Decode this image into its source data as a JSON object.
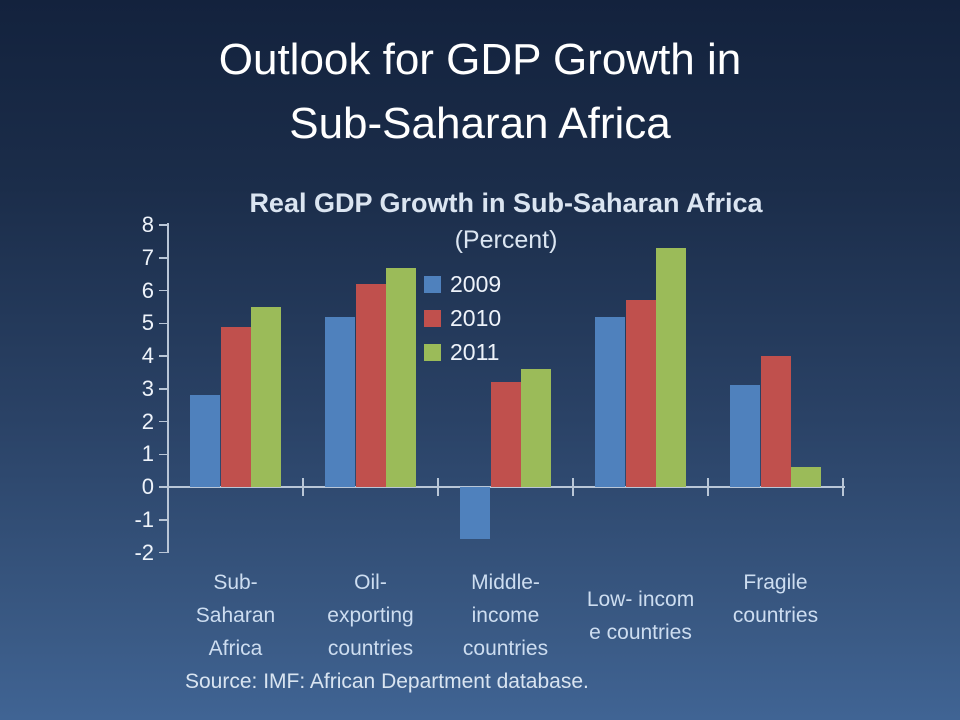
{
  "slide": {
    "title_line1": "Outlook for GDP Growth in",
    "title_line2": "Sub-Saharan Africa"
  },
  "chart_data": {
    "type": "bar",
    "title": "Real GDP Growth in Sub-Saharan Africa",
    "subtitle": "(Percent)",
    "categories": [
      "Sub-Saharan Africa",
      "Oil-exporting countries",
      "Middle-income countries",
      "Low-income countries",
      "Fragile countries"
    ],
    "category_label_lines": [
      [
        "Sub-",
        "Saharan",
        "Africa"
      ],
      [
        "Oil-",
        "exporting",
        "countries"
      ],
      [
        "Middle-",
        "income",
        "countries"
      ],
      [
        "Low- incom",
        "e countries"
      ],
      [
        "Fragile",
        "countries"
      ]
    ],
    "series": [
      {
        "name": "2009",
        "color": "#4F81BD",
        "values": [
          2.8,
          5.2,
          -1.6,
          5.2,
          3.1
        ]
      },
      {
        "name": "2010",
        "color": "#C0504D",
        "values": [
          4.9,
          6.2,
          3.2,
          5.7,
          4.0
        ]
      },
      {
        "name": "2011",
        "color": "#9BBB59",
        "values": [
          5.5,
          6.7,
          3.6,
          7.3,
          0.6
        ]
      }
    ],
    "ylabel": "",
    "xlabel": "",
    "ylim": [
      -2,
      8
    ],
    "ytick_step": 1,
    "grid": false,
    "legend_position": "inside-top-center",
    "source": "Source: IMF: African Department database."
  }
}
